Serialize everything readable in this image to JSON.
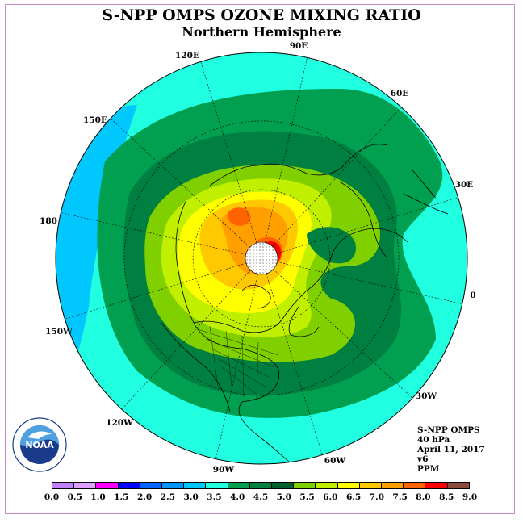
{
  "title": "S-NPP OMPS OZONE MIXING RATIO",
  "subtitle": "Northern Hemisphere",
  "longitude_labels": [
    "90E",
    "60E",
    "30E",
    "0",
    "30W",
    "60W",
    "90W",
    "120W",
    "150W",
    "180",
    "150E",
    "120E"
  ],
  "info": {
    "instrument": "S-NPP OMPS",
    "level": "40 hPa",
    "date": "April 11, 2017",
    "version": "v6",
    "units": "PPM"
  },
  "logo": {
    "text": "NOAA"
  },
  "colorbar": {
    "labels": [
      "0.0",
      "0.5",
      "1.0",
      "1.5",
      "2.0",
      "2.5",
      "3.0",
      "3.5",
      "4.0",
      "4.5",
      "5.0",
      "5.5",
      "6.0",
      "6.5",
      "7.0",
      "7.5",
      "8.0",
      "8.5",
      "9.0"
    ],
    "colors": [
      "#c080ff",
      "#e0a0ff",
      "#ff00ff",
      "#0000ff",
      "#0064ff",
      "#0096ff",
      "#00c8ff",
      "#20ffe0",
      "#00a050",
      "#008040",
      "#006030",
      "#80d000",
      "#c0f000",
      "#ffff00",
      "#ffc800",
      "#ffa000",
      "#ff6400",
      "#ff0000",
      "#8b4a3a"
    ]
  },
  "map": {
    "colors": {
      "ocean_outer": "#20ffe0",
      "band_3": "#00c8ff",
      "band_45": "#00a050",
      "band_5": "#008040",
      "band_55": "#80d000",
      "band_6": "#c0f000",
      "band_65": "#ffff00",
      "band_7": "#ffc800",
      "band_75": "#ffa000",
      "band_8": "#ff6400",
      "band_85": "#ff0000",
      "pole_missing": "#ffffff"
    }
  }
}
